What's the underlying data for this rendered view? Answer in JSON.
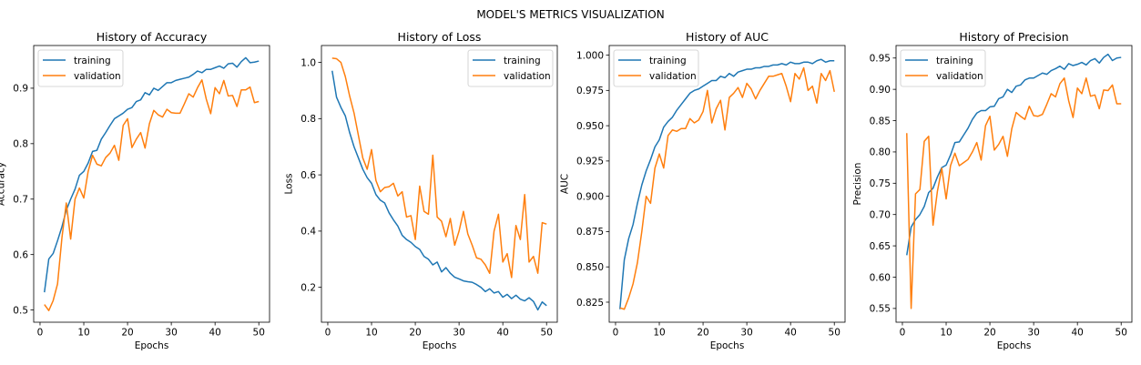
{
  "figure": {
    "suptitle": "MODEL'S METRICS VISUALIZATION"
  },
  "colors": {
    "training": "#1f77b4",
    "validation": "#ff7f0e"
  },
  "chart_data": [
    {
      "type": "line",
      "title": "History of Accuracy",
      "xlabel": "Epochs",
      "ylabel": "Accuracy",
      "xlim": [
        -1.45,
        52.45
      ],
      "ylim": [
        0.478,
        0.977
      ],
      "xticks": [
        0,
        10,
        20,
        30,
        40,
        50
      ],
      "yticks": [
        0.5,
        0.6,
        0.7,
        0.8,
        0.9
      ],
      "yticklabels": [
        "0.5",
        "0.6",
        "0.7",
        "0.8",
        "0.9"
      ],
      "legend": "top-left",
      "grid": false,
      "x": [
        1,
        2,
        3,
        4,
        5,
        6,
        7,
        8,
        9,
        10,
        11,
        12,
        13,
        14,
        15,
        16,
        17,
        18,
        19,
        20,
        21,
        22,
        23,
        24,
        25,
        26,
        27,
        28,
        29,
        30,
        31,
        32,
        33,
        34,
        35,
        36,
        37,
        38,
        39,
        40,
        41,
        42,
        43,
        44,
        45,
        46,
        47,
        48,
        49,
        50
      ],
      "series": [
        {
          "name": "training",
          "values": [
            0.532,
            0.592,
            0.602,
            0.625,
            0.65,
            0.68,
            0.7,
            0.718,
            0.743,
            0.75,
            0.765,
            0.786,
            0.788,
            0.808,
            0.82,
            0.833,
            0.845,
            0.85,
            0.855,
            0.862,
            0.865,
            0.876,
            0.879,
            0.892,
            0.888,
            0.9,
            0.896,
            0.903,
            0.91,
            0.91,
            0.914,
            0.916,
            0.918,
            0.92,
            0.925,
            0.931,
            0.928,
            0.934,
            0.934,
            0.937,
            0.94,
            0.936,
            0.944,
            0.945,
            0.938,
            0.948,
            0.955,
            0.946,
            0.947,
            0.949
          ]
        },
        {
          "name": "validation",
          "values": [
            0.51,
            0.499,
            0.517,
            0.547,
            0.63,
            0.693,
            0.628,
            0.7,
            0.72,
            0.702,
            0.75,
            0.779,
            0.763,
            0.76,
            0.775,
            0.783,
            0.797,
            0.77,
            0.833,
            0.845,
            0.793,
            0.808,
            0.82,
            0.792,
            0.836,
            0.86,
            0.852,
            0.848,
            0.862,
            0.856,
            0.855,
            0.855,
            0.872,
            0.89,
            0.884,
            0.901,
            0.915,
            0.88,
            0.854,
            0.901,
            0.89,
            0.914,
            0.886,
            0.887,
            0.867,
            0.897,
            0.897,
            0.902,
            0.874,
            0.876
          ]
        }
      ]
    },
    {
      "type": "line",
      "title": "History of Loss",
      "xlabel": "Epochs",
      "ylabel": "Loss",
      "xlim": [
        -1.45,
        52.45
      ],
      "ylim": [
        0.076,
        1.06
      ],
      "xticks": [
        0,
        10,
        20,
        30,
        40,
        50
      ],
      "yticks": [
        0.2,
        0.4,
        0.6,
        0.8,
        1.0
      ],
      "yticklabels": [
        "0.2",
        "0.4",
        "0.6",
        "0.8",
        "1.0"
      ],
      "legend": "top-right",
      "grid": false,
      "x": [
        1,
        2,
        3,
        4,
        5,
        6,
        7,
        8,
        9,
        10,
        11,
        12,
        13,
        14,
        15,
        16,
        17,
        18,
        19,
        20,
        21,
        22,
        23,
        24,
        25,
        26,
        27,
        28,
        29,
        30,
        31,
        32,
        33,
        34,
        35,
        36,
        37,
        38,
        39,
        40,
        41,
        42,
        43,
        44,
        45,
        46,
        47,
        48,
        49,
        50
      ],
      "series": [
        {
          "name": "training",
          "values": [
            0.97,
            0.876,
            0.84,
            0.81,
            0.75,
            0.7,
            0.66,
            0.62,
            0.59,
            0.57,
            0.53,
            0.51,
            0.5,
            0.465,
            0.44,
            0.418,
            0.385,
            0.37,
            0.36,
            0.345,
            0.335,
            0.31,
            0.3,
            0.28,
            0.29,
            0.255,
            0.27,
            0.25,
            0.236,
            0.23,
            0.223,
            0.22,
            0.218,
            0.21,
            0.2,
            0.185,
            0.195,
            0.18,
            0.185,
            0.165,
            0.175,
            0.16,
            0.172,
            0.158,
            0.152,
            0.163,
            0.15,
            0.12,
            0.148,
            0.135
          ]
        },
        {
          "name": "validation",
          "values": [
            1.015,
            1.013,
            1.0,
            0.95,
            0.88,
            0.82,
            0.74,
            0.66,
            0.62,
            0.69,
            0.58,
            0.54,
            0.555,
            0.558,
            0.57,
            0.525,
            0.54,
            0.45,
            0.455,
            0.37,
            0.56,
            0.47,
            0.46,
            0.67,
            0.45,
            0.435,
            0.38,
            0.445,
            0.35,
            0.4,
            0.47,
            0.39,
            0.35,
            0.305,
            0.3,
            0.28,
            0.25,
            0.4,
            0.46,
            0.29,
            0.32,
            0.235,
            0.42,
            0.37,
            0.53,
            0.29,
            0.31,
            0.25,
            0.43,
            0.425
          ]
        }
      ]
    },
    {
      "type": "line",
      "title": "History of AUC",
      "xlabel": "Epochs",
      "ylabel": "AUC",
      "xlim": [
        -1.45,
        52.45
      ],
      "ylim": [
        0.8108,
        1.0068
      ],
      "xticks": [
        0,
        10,
        20,
        30,
        40,
        50
      ],
      "yticks": [
        0.825,
        0.85,
        0.875,
        0.9,
        0.925,
        0.95,
        0.975,
        1.0
      ],
      "yticklabels": [
        "0.825",
        "0.850",
        "0.875",
        "0.900",
        "0.925",
        "0.950",
        "0.975",
        "1.000"
      ],
      "legend": "top-left",
      "grid": false,
      "x": [
        1,
        2,
        3,
        4,
        5,
        6,
        7,
        8,
        9,
        10,
        11,
        12,
        13,
        14,
        15,
        16,
        17,
        18,
        19,
        20,
        21,
        22,
        23,
        24,
        25,
        26,
        27,
        28,
        29,
        30,
        31,
        32,
        33,
        34,
        35,
        36,
        37,
        38,
        39,
        40,
        41,
        42,
        43,
        44,
        45,
        46,
        47,
        48,
        49,
        50
      ],
      "series": [
        {
          "name": "training",
          "values": [
            0.82,
            0.855,
            0.87,
            0.88,
            0.895,
            0.908,
            0.918,
            0.926,
            0.935,
            0.94,
            0.949,
            0.953,
            0.956,
            0.961,
            0.965,
            0.969,
            0.973,
            0.975,
            0.976,
            0.978,
            0.98,
            0.982,
            0.982,
            0.985,
            0.984,
            0.987,
            0.985,
            0.988,
            0.989,
            0.99,
            0.99,
            0.991,
            0.991,
            0.992,
            0.992,
            0.993,
            0.993,
            0.994,
            0.993,
            0.995,
            0.994,
            0.994,
            0.995,
            0.995,
            0.994,
            0.996,
            0.997,
            0.995,
            0.996,
            0.996
          ]
        },
        {
          "name": "validation",
          "values": [
            0.821,
            0.82,
            0.828,
            0.838,
            0.853,
            0.875,
            0.9,
            0.895,
            0.92,
            0.93,
            0.92,
            0.943,
            0.947,
            0.946,
            0.948,
            0.948,
            0.955,
            0.952,
            0.954,
            0.96,
            0.975,
            0.952,
            0.962,
            0.968,
            0.947,
            0.97,
            0.973,
            0.977,
            0.97,
            0.98,
            0.976,
            0.969,
            0.975,
            0.98,
            0.985,
            0.985,
            0.986,
            0.987,
            0.978,
            0.967,
            0.987,
            0.983,
            0.991,
            0.975,
            0.978,
            0.966,
            0.987,
            0.982,
            0.989,
            0.974
          ]
        }
      ]
    },
    {
      "type": "line",
      "title": "History of Precision",
      "xlabel": "Epochs",
      "ylabel": "Precision",
      "xlim": [
        -1.45,
        52.45
      ],
      "ylim": [
        0.528,
        0.97
      ],
      "xticks": [
        0,
        10,
        20,
        30,
        40,
        50
      ],
      "yticks": [
        0.55,
        0.6,
        0.65,
        0.7,
        0.75,
        0.8,
        0.85,
        0.9,
        0.95
      ],
      "yticklabels": [
        "0.55",
        "0.60",
        "0.65",
        "0.70",
        "0.75",
        "0.80",
        "0.85",
        "0.90",
        "0.95"
      ],
      "legend": "top-left",
      "grid": false,
      "x": [
        1,
        2,
        3,
        4,
        5,
        6,
        7,
        8,
        9,
        10,
        11,
        12,
        13,
        14,
        15,
        16,
        17,
        18,
        19,
        20,
        21,
        22,
        23,
        24,
        25,
        26,
        27,
        28,
        29,
        30,
        31,
        32,
        33,
        34,
        35,
        36,
        37,
        38,
        39,
        40,
        41,
        42,
        43,
        44,
        45,
        46,
        47,
        48,
        49,
        50
      ],
      "series": [
        {
          "name": "training",
          "values": [
            0.635,
            0.68,
            0.692,
            0.7,
            0.713,
            0.735,
            0.742,
            0.76,
            0.775,
            0.779,
            0.795,
            0.815,
            0.816,
            0.827,
            0.838,
            0.852,
            0.862,
            0.866,
            0.866,
            0.872,
            0.873,
            0.885,
            0.888,
            0.9,
            0.895,
            0.905,
            0.907,
            0.915,
            0.918,
            0.918,
            0.922,
            0.926,
            0.924,
            0.93,
            0.933,
            0.937,
            0.932,
            0.941,
            0.938,
            0.94,
            0.943,
            0.939,
            0.946,
            0.949,
            0.942,
            0.951,
            0.956,
            0.946,
            0.95,
            0.951
          ]
        },
        {
          "name": "validation",
          "values": [
            0.83,
            0.55,
            0.733,
            0.74,
            0.817,
            0.825,
            0.683,
            0.737,
            0.774,
            0.725,
            0.778,
            0.798,
            0.778,
            0.783,
            0.788,
            0.8,
            0.815,
            0.787,
            0.842,
            0.857,
            0.803,
            0.812,
            0.825,
            0.793,
            0.837,
            0.863,
            0.857,
            0.852,
            0.873,
            0.858,
            0.857,
            0.86,
            0.876,
            0.893,
            0.888,
            0.909,
            0.918,
            0.882,
            0.855,
            0.902,
            0.893,
            0.918,
            0.889,
            0.891,
            0.869,
            0.899,
            0.898,
            0.907,
            0.877,
            0.877
          ]
        }
      ]
    }
  ]
}
